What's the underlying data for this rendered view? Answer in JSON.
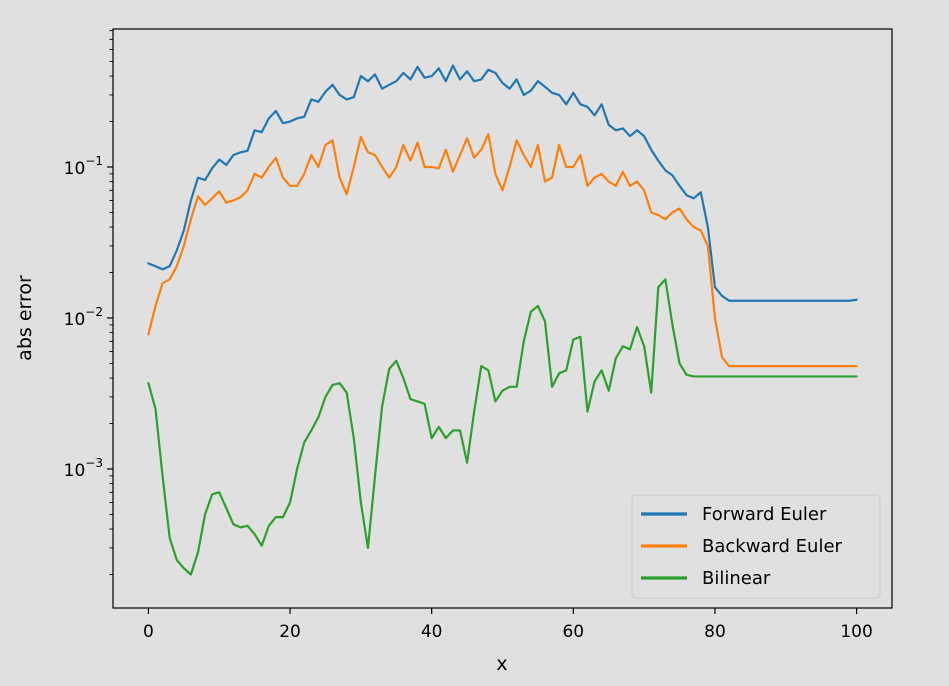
{
  "chart_data": {
    "type": "line",
    "xlabel": "x",
    "ylabel": "abs error",
    "yscale": "log",
    "xlim": [
      -5,
      105
    ],
    "ylim": [
      0.00012,
      0.82
    ],
    "xticks": [
      {
        "value": 0,
        "label": "0"
      },
      {
        "value": 20,
        "label": "20"
      },
      {
        "value": 40,
        "label": "40"
      },
      {
        "value": 60,
        "label": "60"
      },
      {
        "value": 80,
        "label": "80"
      },
      {
        "value": 100,
        "label": "100"
      }
    ],
    "yticks": [
      {
        "value": 0.001,
        "base": "10",
        "exp": "−3"
      },
      {
        "value": 0.01,
        "base": "10",
        "exp": "−2"
      },
      {
        "value": 0.1,
        "base": "10",
        "exp": "−1"
      }
    ],
    "legend_position": "lower-right",
    "grid": false,
    "series": [
      {
        "name": "Forward Euler",
        "color": "#1f77b4",
        "x": [
          0,
          1,
          2,
          3,
          4,
          5,
          6,
          7,
          8,
          9,
          10,
          11,
          12,
          13,
          14,
          15,
          16,
          17,
          18,
          19,
          20,
          21,
          22,
          23,
          24,
          25,
          26,
          27,
          28,
          29,
          30,
          31,
          32,
          33,
          34,
          35,
          36,
          37,
          38,
          39,
          40,
          41,
          42,
          43,
          44,
          45,
          46,
          47,
          48,
          49,
          50,
          51,
          52,
          53,
          54,
          55,
          56,
          57,
          58,
          59,
          60,
          61,
          62,
          63,
          64,
          65,
          66,
          67,
          68,
          69,
          70,
          71,
          72,
          73,
          74,
          75,
          76,
          77,
          78,
          79,
          80,
          81,
          82,
          83,
          84,
          85,
          86,
          87,
          88,
          89,
          90,
          91,
          92,
          93,
          94,
          95,
          96,
          97,
          98,
          99,
          100
        ],
        "y": [
          0.023,
          0.022,
          0.021,
          0.022,
          0.028,
          0.038,
          0.06,
          0.085,
          0.082,
          0.098,
          0.112,
          0.103,
          0.12,
          0.125,
          0.128,
          0.175,
          0.17,
          0.21,
          0.235,
          0.195,
          0.2,
          0.21,
          0.215,
          0.28,
          0.27,
          0.315,
          0.35,
          0.3,
          0.28,
          0.29,
          0.4,
          0.37,
          0.41,
          0.33,
          0.35,
          0.37,
          0.42,
          0.38,
          0.46,
          0.39,
          0.4,
          0.45,
          0.37,
          0.47,
          0.38,
          0.43,
          0.37,
          0.38,
          0.44,
          0.42,
          0.36,
          0.33,
          0.38,
          0.3,
          0.32,
          0.37,
          0.34,
          0.31,
          0.3,
          0.26,
          0.31,
          0.26,
          0.25,
          0.22,
          0.26,
          0.19,
          0.175,
          0.18,
          0.16,
          0.175,
          0.16,
          0.13,
          0.11,
          0.095,
          0.088,
          0.075,
          0.065,
          0.062,
          0.068,
          0.04,
          0.016,
          0.014,
          0.013,
          0.013,
          0.013,
          0.013,
          0.013,
          0.013,
          0.013,
          0.013,
          0.013,
          0.013,
          0.013,
          0.013,
          0.013,
          0.013,
          0.013,
          0.013,
          0.013,
          0.013,
          0.0132
        ]
      },
      {
        "name": "Backward Euler",
        "color": "#ff7f0e",
        "x": [
          0,
          1,
          2,
          3,
          4,
          5,
          6,
          7,
          8,
          9,
          10,
          11,
          12,
          13,
          14,
          15,
          16,
          17,
          18,
          19,
          20,
          21,
          22,
          23,
          24,
          25,
          26,
          27,
          28,
          29,
          30,
          31,
          32,
          33,
          34,
          35,
          36,
          37,
          38,
          39,
          40,
          41,
          42,
          43,
          44,
          45,
          46,
          47,
          48,
          49,
          50,
          51,
          52,
          53,
          54,
          55,
          56,
          57,
          58,
          59,
          60,
          61,
          62,
          63,
          64,
          65,
          66,
          67,
          68,
          69,
          70,
          71,
          72,
          73,
          74,
          75,
          76,
          77,
          78,
          79,
          80,
          81,
          82,
          83,
          84,
          85,
          86,
          87,
          88,
          89,
          90,
          91,
          92,
          93,
          94,
          95,
          96,
          97,
          98,
          99,
          100
        ],
        "y": [
          0.0078,
          0.012,
          0.017,
          0.018,
          0.022,
          0.03,
          0.045,
          0.064,
          0.056,
          0.062,
          0.069,
          0.058,
          0.06,
          0.063,
          0.07,
          0.09,
          0.085,
          0.1,
          0.115,
          0.085,
          0.075,
          0.075,
          0.09,
          0.12,
          0.1,
          0.14,
          0.15,
          0.085,
          0.066,
          0.1,
          0.158,
          0.125,
          0.12,
          0.1,
          0.085,
          0.1,
          0.14,
          0.11,
          0.145,
          0.1,
          0.1,
          0.098,
          0.13,
          0.093,
          0.12,
          0.155,
          0.115,
          0.13,
          0.165,
          0.09,
          0.07,
          0.1,
          0.15,
          0.12,
          0.1,
          0.14,
          0.08,
          0.085,
          0.14,
          0.1,
          0.1,
          0.12,
          0.075,
          0.085,
          0.09,
          0.08,
          0.075,
          0.093,
          0.075,
          0.08,
          0.07,
          0.05,
          0.048,
          0.045,
          0.05,
          0.053,
          0.045,
          0.04,
          0.038,
          0.03,
          0.01,
          0.0055,
          0.0048,
          0.0048,
          0.0048,
          0.0048,
          0.0048,
          0.0048,
          0.0048,
          0.0048,
          0.0048,
          0.0048,
          0.0048,
          0.0048,
          0.0048,
          0.0048,
          0.0048,
          0.0048,
          0.0048,
          0.0048,
          0.0048
        ]
      },
      {
        "name": "Bilinear",
        "color": "#2ca02c",
        "x": [
          0,
          1,
          2,
          3,
          4,
          5,
          6,
          7,
          8,
          9,
          10,
          11,
          12,
          13,
          14,
          15,
          16,
          17,
          18,
          19,
          20,
          21,
          22,
          23,
          24,
          25,
          26,
          27,
          28,
          29,
          30,
          31,
          32,
          33,
          34,
          35,
          36,
          37,
          38,
          39,
          40,
          41,
          42,
          43,
          44,
          45,
          46,
          47,
          48,
          49,
          50,
          51,
          52,
          53,
          54,
          55,
          56,
          57,
          58,
          59,
          60,
          61,
          62,
          63,
          64,
          65,
          66,
          67,
          68,
          69,
          70,
          71,
          72,
          73,
          74,
          75,
          76,
          77,
          78,
          79,
          80,
          81,
          82,
          83,
          84,
          85,
          86,
          87,
          88,
          89,
          90,
          91,
          92,
          93,
          94,
          95,
          96,
          97,
          98,
          99,
          100
        ],
        "y": [
          0.0037,
          0.0025,
          0.0009,
          0.00035,
          0.00025,
          0.00022,
          0.0002,
          0.00028,
          0.0005,
          0.00068,
          0.0007,
          0.00055,
          0.00043,
          0.00041,
          0.00042,
          0.00037,
          0.00031,
          0.00042,
          0.00048,
          0.00048,
          0.0006,
          0.001,
          0.0015,
          0.0018,
          0.0022,
          0.003,
          0.0036,
          0.0037,
          0.0032,
          0.0016,
          0.0006,
          0.0003,
          0.0009,
          0.0026,
          0.0046,
          0.0052,
          0.004,
          0.0029,
          0.0028,
          0.0027,
          0.0016,
          0.0019,
          0.0016,
          0.0018,
          0.0018,
          0.0011,
          0.0024,
          0.0048,
          0.0045,
          0.0028,
          0.0033,
          0.0035,
          0.0035,
          0.007,
          0.011,
          0.012,
          0.0095,
          0.0035,
          0.0043,
          0.0045,
          0.0072,
          0.0075,
          0.0024,
          0.0038,
          0.0045,
          0.0033,
          0.0054,
          0.0065,
          0.0062,
          0.0087,
          0.0065,
          0.0032,
          0.016,
          0.018,
          0.009,
          0.005,
          0.0042,
          0.0041,
          0.0041,
          0.0041,
          0.0041,
          0.0041,
          0.0041,
          0.0041,
          0.0041,
          0.0041,
          0.0041,
          0.0041,
          0.0041,
          0.0041,
          0.0041,
          0.0041,
          0.0041,
          0.0041,
          0.0041,
          0.0041,
          0.0041,
          0.0041,
          0.0041,
          0.0041,
          0.0041
        ]
      }
    ]
  }
}
